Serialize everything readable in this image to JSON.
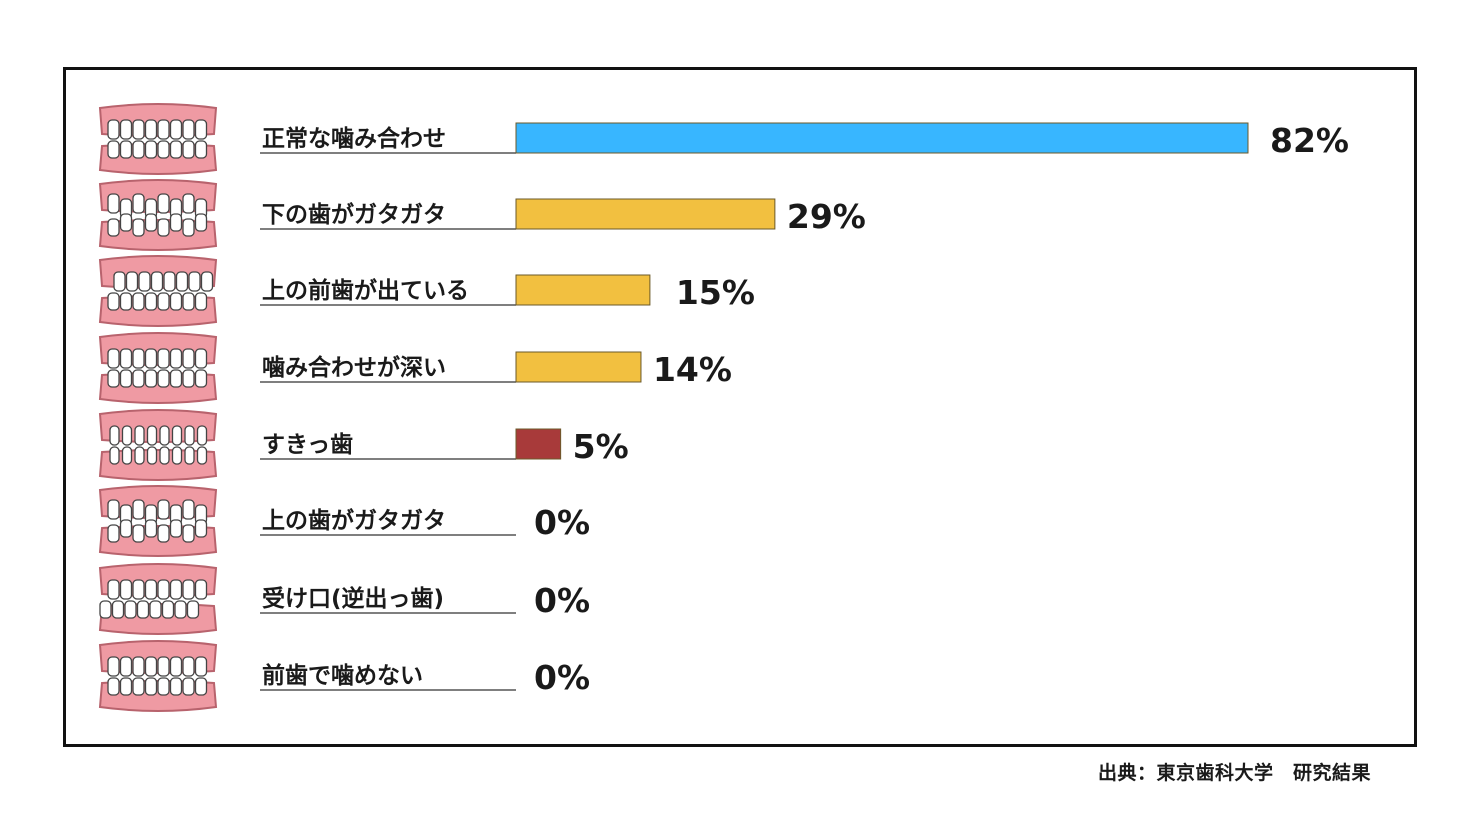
{
  "chart_data": {
    "type": "bar",
    "orientation": "horizontal",
    "categories": [
      "正常な噛み合わせ",
      "下の歯がガタガタ",
      "上の前歯が出ている",
      "噛み合わせが深い",
      "すきっ歯",
      "上の歯がガタガタ",
      "受け口(逆出っ歯)",
      "前歯で噛めない"
    ],
    "values": [
      82,
      29,
      15,
      14,
      5,
      0,
      0,
      0
    ],
    "value_labels": [
      "82%",
      "29%",
      "15%",
      "14%",
      "5%",
      "0%",
      "0%",
      "0%"
    ],
    "bar_colors": [
      "#38b6ff",
      "#f2c040",
      "#f2c040",
      "#f2c040",
      "#a83a3a",
      "#f2c040",
      "#f2c040",
      "#f2c040"
    ],
    "icons": [
      "teeth-normal-icon",
      "teeth-lower-crowded-icon",
      "teeth-overjet-icon",
      "teeth-deep-bite-icon",
      "teeth-gap-icon",
      "teeth-upper-crowded-icon",
      "teeth-underbite-icon",
      "teeth-open-bite-icon"
    ],
    "xlim": [
      0,
      82
    ],
    "title": "",
    "xlabel": "",
    "ylabel": "",
    "grid": false,
    "legend": "none"
  },
  "source": "出典：東京歯科大学　研究結果"
}
